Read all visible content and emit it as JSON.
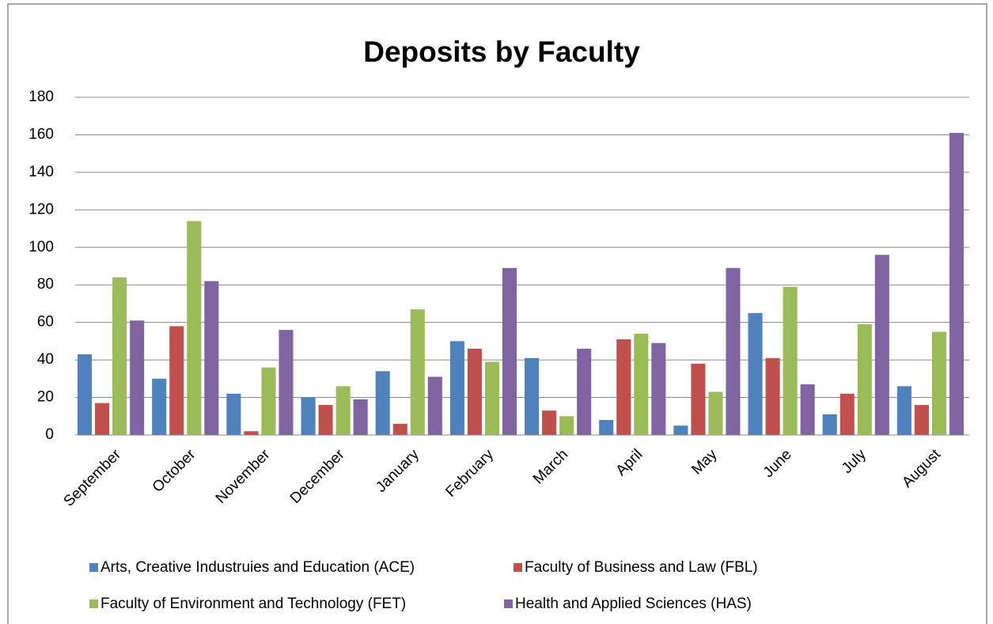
{
  "chart_data": {
    "type": "bar",
    "title": "Deposits by Faculty",
    "categories": [
      "September",
      "October",
      "November",
      "December",
      "January",
      "February",
      "March",
      "April",
      "May",
      "June",
      "July",
      "August"
    ],
    "series": [
      {
        "name": "Arts, Creative Industruies and Education (ACE)",
        "color": "#4f81bd",
        "values": [
          43,
          30,
          22,
          20,
          34,
          50,
          41,
          8,
          5,
          65,
          11,
          26
        ]
      },
      {
        "name": "Faculty of Business and Law (FBL)",
        "color": "#c0504d",
        "values": [
          17,
          58,
          2,
          16,
          6,
          46,
          13,
          51,
          38,
          41,
          22,
          16
        ]
      },
      {
        "name": "Faculty of Environment and Technology (FET)",
        "color": "#9bbb59",
        "values": [
          84,
          114,
          36,
          26,
          67,
          39,
          10,
          54,
          23,
          79,
          59,
          55
        ]
      },
      {
        "name": "Health and Applied Sciences (HAS)",
        "color": "#8064a2",
        "values": [
          61,
          82,
          56,
          19,
          31,
          89,
          46,
          49,
          89,
          27,
          96,
          161
        ]
      }
    ],
    "ylim": [
      0,
      180
    ],
    "yticks": [
      0,
      20,
      40,
      60,
      80,
      100,
      120,
      140,
      160,
      180
    ],
    "grid": true,
    "legend": "bottom"
  }
}
